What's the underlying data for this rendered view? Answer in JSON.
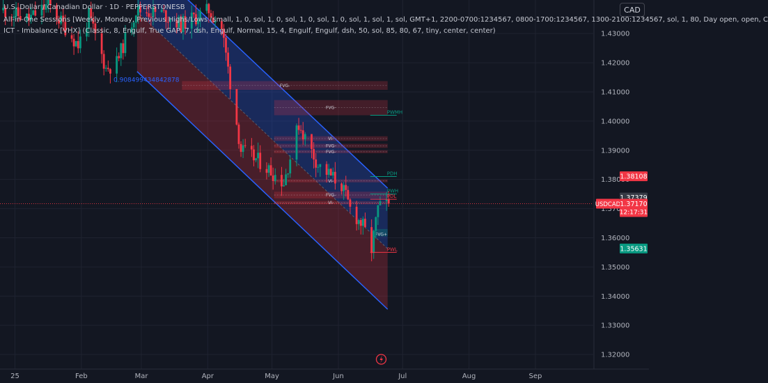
{
  "header": {
    "title_line": "U.S. Dollar / Canadian Dollar · 1D · PEPPERSTONESB",
    "indicator_1": "All-in-One Sessions [Weekly, Monday, Previous Highs/Lows (small, 1, 0, sol, 1, 0, sol, 1, 0, sol, 1, 0, sol, 1, sol, 1, sol, GMT+1, 2200-0700:1234567, 0800-1700:1234567, 1300-2100:1234567, sol, 1, 80, Day open, open, C",
    "indicator_2": "ICT - Imbalance [VHX] (Classic, 8, Engulf, True GAP, 7, dsh, Engulf, Normal, 15, 4, Engulf, Engulf, dsh, 50, sol, 85, 80, 67, tiny, center, center)",
    "currency": "CAD"
  },
  "chart_data": {
    "type": "candlestick",
    "symbol": "USDCAD",
    "interval": "1D",
    "ylim": [
      1.315,
      1.4415
    ],
    "y_ticks": [
      "1.43000",
      "1.42000",
      "1.41000",
      "1.40000",
      "1.39000",
      "1.38000",
      "1.37000",
      "1.36000",
      "1.35000",
      "1.34000",
      "1.33000",
      "1.32000"
    ],
    "x_ticks": [
      {
        "label": "25",
        "date": "2025-01-01"
      },
      {
        "label": "Feb",
        "date": "2025-02-01"
      },
      {
        "label": "Mar",
        "date": "2025-03-01"
      },
      {
        "label": "Apr",
        "date": "2025-04-01"
      },
      {
        "label": "May",
        "date": "2025-05-01"
      },
      {
        "label": "Jun",
        "date": "2025-06-01"
      },
      {
        "label": "Jul",
        "date": "2025-07-01"
      },
      {
        "label": "Aug",
        "date": "2025-08-01"
      },
      {
        "label": "Sep",
        "date": "2025-09-01"
      }
    ],
    "date_range": [
      "2024-12-25",
      "2025-09-28"
    ],
    "pivots": [
      {
        "date": "2024-12-26",
        "price": 1.438
      },
      {
        "date": "2025-01-07",
        "price": 1.435
      },
      {
        "date": "2025-01-16",
        "price": 1.44
      },
      {
        "date": "2025-01-30",
        "price": 1.426
      },
      {
        "date": "2025-02-04",
        "price": 1.436
      },
      {
        "date": "2025-02-12",
        "price": 1.418
      },
      {
        "date": "2025-02-17",
        "price": 1.42
      },
      {
        "date": "2025-02-26",
        "price": 1.438
      },
      {
        "date": "2025-03-10",
        "price": 1.437
      },
      {
        "date": "2025-03-19",
        "price": 1.433
      },
      {
        "date": "2025-04-01",
        "price": 1.438
      },
      {
        "date": "2025-04-07",
        "price": 1.432
      },
      {
        "date": "2025-04-16",
        "price": 1.39
      },
      {
        "date": "2025-04-25",
        "price": 1.386
      },
      {
        "date": "2025-05-06",
        "price": 1.379
      },
      {
        "date": "2025-05-13",
        "price": 1.399
      },
      {
        "date": "2025-05-22",
        "price": 1.385
      },
      {
        "date": "2025-06-02",
        "price": 1.378
      },
      {
        "date": "2025-06-06",
        "price": 1.37
      },
      {
        "date": "2025-06-12",
        "price": 1.364
      },
      {
        "date": "2025-06-16",
        "price": 1.356
      },
      {
        "date": "2025-06-19",
        "price": 1.37
      },
      {
        "date": "2025-06-24",
        "price": 1.3717
      }
    ],
    "channel": {
      "upper": [
        {
          "date": "2025-02-27",
          "price": 1.458
        },
        {
          "date": "2025-06-24",
          "price": 1.377
        }
      ],
      "lower": [
        {
          "date": "2025-02-27",
          "price": 1.417
        },
        {
          "date": "2025-06-24",
          "price": 1.3355
        }
      ]
    },
    "fib_label": {
      "text": "0.908499434842878",
      "date": "2025-02-16",
      "price": 1.4135
    },
    "fvg_zones": [
      {
        "label": "FVG-",
        "start": "2025-03-20",
        "end": "2025-06-24",
        "top": 1.4137,
        "bottom": 1.4107
      },
      {
        "label": "FVG-",
        "start": "2025-05-02",
        "end": "2025-06-24",
        "top": 1.4072,
        "bottom": 1.402
      },
      {
        "label": "VI-",
        "start": "2025-05-02",
        "end": "2025-06-24",
        "top": 1.3948,
        "bottom": 1.3932
      },
      {
        "label": "FVG-",
        "start": "2025-05-02",
        "end": "2025-06-24",
        "top": 1.3922,
        "bottom": 1.3908
      },
      {
        "label": "FVG-",
        "start": "2025-05-02",
        "end": "2025-06-24",
        "top": 1.39,
        "bottom": 1.389
      },
      {
        "label": "VI-",
        "start": "2025-05-02",
        "end": "2025-06-24",
        "top": 1.38,
        "bottom": 1.379
      },
      {
        "label": "FVG-",
        "start": "2025-05-02",
        "end": "2025-06-24",
        "top": 1.3758,
        "bottom": 1.3735
      },
      {
        "label": "VI-",
        "start": "2025-05-02",
        "end": "2025-06-24",
        "top": 1.3725,
        "bottom": 1.3715
      }
    ],
    "fvg_bull": {
      "label": "FVG+",
      "start": "2025-06-18",
      "end": "2025-06-24",
      "top": 1.363,
      "bottom": 1.3605
    },
    "level_labels": [
      {
        "label": "PWH",
        "price": 1.375
      },
      {
        "label": "PDL",
        "price": 1.3732
      },
      {
        "label": "PWL",
        "price": 1.355
      },
      {
        "label": "PDH",
        "price": 1.381
      },
      {
        "label": "PWMH",
        "price": 1.402
      }
    ],
    "price_labels": [
      {
        "value": "1.38108",
        "price": 1.38108,
        "color": "#f23645"
      },
      {
        "value": "1.37379",
        "price": 1.37379,
        "color": "#363a45"
      },
      {
        "value": "1.35631",
        "price": 1.35631,
        "color": "#089981"
      }
    ],
    "current_price": {
      "symbol": "USDCAD",
      "value": "1.37170",
      "countdown": "12:17:31",
      "price": 1.3717,
      "color": "#f23645"
    }
  }
}
